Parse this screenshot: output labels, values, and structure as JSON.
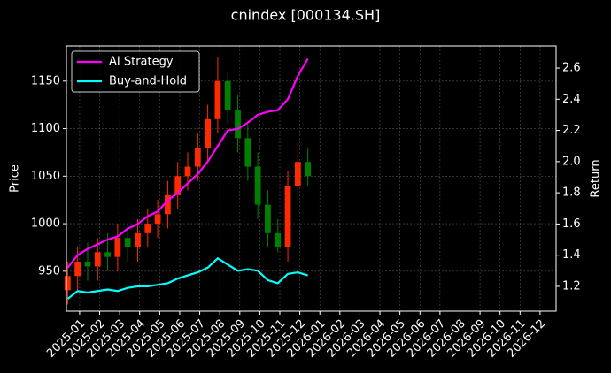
{
  "chart_data": {
    "type": "candlestick",
    "title": "cnindex [000134.SH]",
    "ylabel": "Price",
    "y2label": "Return",
    "x": [
      -0.6,
      -0.1,
      0.4,
      0.9,
      1.4,
      1.9,
      2.4,
      2.9,
      3.4,
      3.9,
      4.4,
      4.9,
      5.4,
      5.9,
      6.4,
      6.9,
      7.4,
      7.9,
      8.4,
      8.9,
      9.4,
      9.9,
      10.4,
      10.9,
      11.4
    ],
    "open": [
      930,
      945,
      960,
      955,
      970,
      965,
      985,
      975,
      990,
      1000,
      1010,
      1030,
      1050,
      1060,
      1080,
      1110,
      1150,
      1120,
      1090,
      1060,
      1020,
      990,
      975,
      1040,
      1065
    ],
    "high": [
      960,
      975,
      980,
      985,
      990,
      1000,
      1000,
      1005,
      1015,
      1025,
      1045,
      1065,
      1075,
      1095,
      1125,
      1175,
      1160,
      1135,
      1105,
      1075,
      1035,
      1005,
      1055,
      1085,
      1080
    ],
    "low": [
      915,
      930,
      940,
      940,
      950,
      950,
      960,
      960,
      975,
      985,
      995,
      1015,
      1035,
      1045,
      1065,
      1095,
      1105,
      1075,
      1045,
      1005,
      975,
      970,
      960,
      1025,
      1040
    ],
    "close": [
      945,
      960,
      955,
      970,
      965,
      985,
      975,
      990,
      1000,
      1010,
      1030,
      1050,
      1060,
      1080,
      1110,
      1150,
      1120,
      1090,
      1060,
      1020,
      990,
      975,
      1040,
      1065,
      1050
    ],
    "up_color": "#ff2a00",
    "down_color": "#008000",
    "series": [
      {
        "name": "AI Strategy",
        "color": "#ff00ff",
        "axis": "y2",
        "values": [
          1.32,
          1.4,
          1.44,
          1.47,
          1.5,
          1.52,
          1.57,
          1.6,
          1.65,
          1.68,
          1.75,
          1.8,
          1.86,
          1.92,
          2.0,
          2.1,
          2.2,
          2.21,
          2.25,
          2.3,
          2.32,
          2.33,
          2.4,
          2.55,
          2.66
        ]
      },
      {
        "name": "Buy-and-Hold",
        "color": "#00ffff",
        "axis": "y2",
        "values": [
          1.12,
          1.17,
          1.16,
          1.17,
          1.18,
          1.17,
          1.19,
          1.2,
          1.2,
          1.21,
          1.22,
          1.25,
          1.27,
          1.29,
          1.32,
          1.38,
          1.34,
          1.3,
          1.31,
          1.3,
          1.24,
          1.22,
          1.28,
          1.29,
          1.27
        ]
      }
    ],
    "xlim": [
      -0.66,
      23.8
    ],
    "xticks": [
      {
        "value": 0,
        "label": "2025-01"
      },
      {
        "value": 1,
        "label": "2025-02"
      },
      {
        "value": 2,
        "label": "2025-03"
      },
      {
        "value": 3,
        "label": "2025-04"
      },
      {
        "value": 4,
        "label": "2025-05"
      },
      {
        "value": 5,
        "label": "2025-06"
      },
      {
        "value": 6,
        "label": "2025-07"
      },
      {
        "value": 7,
        "label": "2025-08"
      },
      {
        "value": 8,
        "label": "2025-09"
      },
      {
        "value": 9,
        "label": "2025-10"
      },
      {
        "value": 10,
        "label": "2025-11"
      },
      {
        "value": 11,
        "label": "2025-12"
      },
      {
        "value": 12,
        "label": "2026-01"
      },
      {
        "value": 13,
        "label": "2026-02"
      },
      {
        "value": 14,
        "label": "2026-03"
      },
      {
        "value": 15,
        "label": "2026-04"
      },
      {
        "value": 16,
        "label": "2026-05"
      },
      {
        "value": 17,
        "label": "2026-06"
      },
      {
        "value": 18,
        "label": "2026-07"
      },
      {
        "value": 19,
        "label": "2026-08"
      },
      {
        "value": 20,
        "label": "2026-09"
      },
      {
        "value": 21,
        "label": "2026-10"
      },
      {
        "value": 22,
        "label": "2026-11"
      },
      {
        "value": 23,
        "label": "2026-12"
      }
    ],
    "ylim": [
      908,
      1187
    ],
    "yticks": [
      950,
      1000,
      1050,
      1100,
      1150
    ],
    "y2lim": [
      1.041,
      2.742
    ],
    "y2ticks": [
      1.2,
      1.4,
      1.6,
      1.8,
      {
        "value": 2,
        "label": "2.0"
      },
      2.2,
      2.4,
      2.6
    ],
    "grid": true,
    "legend": "upper left"
  }
}
